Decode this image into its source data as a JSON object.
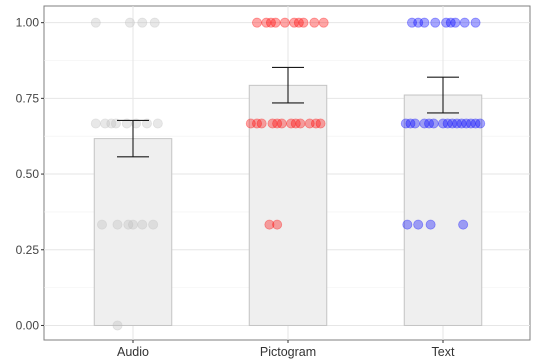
{
  "chart_data": {
    "type": "bar",
    "title": "",
    "xlabel": "",
    "ylabel": "",
    "categories": [
      "Audio",
      "Pictogram",
      "Text"
    ],
    "ylim": [
      0,
      1.05
    ],
    "yticks": [
      "0.00",
      "0.25",
      "0.50",
      "0.75",
      "1.00"
    ],
    "grid": true,
    "legend": "none",
    "bars": [
      {
        "category": "Audio",
        "mean": 0.617,
        "ci_low": 0.557,
        "ci_high": 0.677,
        "color": "#bdbdbd"
      },
      {
        "category": "Pictogram",
        "mean": 0.793,
        "ci_low": 0.735,
        "ci_high": 0.852,
        "color": "#ff0000"
      },
      {
        "category": "Text",
        "mean": 0.761,
        "ci_low": 0.702,
        "ci_high": 0.82,
        "color": "#0000ff"
      }
    ],
    "points": {
      "Audio": [
        {
          "y": 0.0,
          "dx": -0.1
        },
        {
          "y": 0.333,
          "dx": -0.2
        },
        {
          "y": 0.333,
          "dx": -0.1
        },
        {
          "y": 0.333,
          "dx": 0.0
        },
        {
          "y": 0.333,
          "dx": 0.06
        },
        {
          "y": 0.333,
          "dx": 0.13
        },
        {
          "y": 0.333,
          "dx": -0.03
        },
        {
          "y": 0.667,
          "dx": -0.24
        },
        {
          "y": 0.667,
          "dx": -0.18
        },
        {
          "y": 0.667,
          "dx": -0.11
        },
        {
          "y": 0.667,
          "dx": -0.04
        },
        {
          "y": 0.667,
          "dx": 0.02
        },
        {
          "y": 0.667,
          "dx": 0.09
        },
        {
          "y": 0.667,
          "dx": 0.16
        },
        {
          "y": 0.667,
          "dx": -0.14
        },
        {
          "y": 1.0,
          "dx": -0.24
        },
        {
          "y": 1.0,
          "dx": -0.02
        },
        {
          "y": 1.0,
          "dx": 0.06
        },
        {
          "y": 1.0,
          "dx": 0.14
        }
      ],
      "Pictogram": [
        {
          "y": 0.333,
          "dx": -0.12
        },
        {
          "y": 0.333,
          "dx": -0.07
        },
        {
          "y": 0.667,
          "dx": -0.24
        },
        {
          "y": 0.667,
          "dx": -0.17
        },
        {
          "y": 0.667,
          "dx": -0.1
        },
        {
          "y": 0.667,
          "dx": -0.04
        },
        {
          "y": 0.667,
          "dx": 0.02
        },
        {
          "y": 0.667,
          "dx": 0.08
        },
        {
          "y": 0.667,
          "dx": 0.14
        },
        {
          "y": 0.667,
          "dx": 0.21
        },
        {
          "y": 0.667,
          "dx": -0.2
        },
        {
          "y": 0.667,
          "dx": 0.05
        },
        {
          "y": 0.667,
          "dx": 0.18
        },
        {
          "y": 0.667,
          "dx": -0.07
        },
        {
          "y": 1.0,
          "dx": -0.2
        },
        {
          "y": 1.0,
          "dx": -0.14
        },
        {
          "y": 1.0,
          "dx": -0.08
        },
        {
          "y": 1.0,
          "dx": -0.02
        },
        {
          "y": 1.0,
          "dx": 0.04
        },
        {
          "y": 1.0,
          "dx": 0.1
        },
        {
          "y": 1.0,
          "dx": 0.17
        },
        {
          "y": 1.0,
          "dx": 0.23
        },
        {
          "y": 1.0,
          "dx": -0.11
        },
        {
          "y": 1.0,
          "dx": 0.07
        }
      ],
      "Text": [
        {
          "y": 0.333,
          "dx": -0.23
        },
        {
          "y": 0.333,
          "dx": -0.16
        },
        {
          "y": 0.333,
          "dx": -0.08
        },
        {
          "y": 0.333,
          "dx": 0.13
        },
        {
          "y": 0.667,
          "dx": -0.24
        },
        {
          "y": 0.667,
          "dx": -0.18
        },
        {
          "y": 0.667,
          "dx": -0.12
        },
        {
          "y": 0.667,
          "dx": -0.06
        },
        {
          "y": 0.667,
          "dx": 0.0
        },
        {
          "y": 0.667,
          "dx": 0.06
        },
        {
          "y": 0.667,
          "dx": 0.12
        },
        {
          "y": 0.667,
          "dx": 0.18
        },
        {
          "y": 0.667,
          "dx": 0.24
        },
        {
          "y": 0.667,
          "dx": -0.21
        },
        {
          "y": 0.667,
          "dx": -0.09
        },
        {
          "y": 0.667,
          "dx": 0.03
        },
        {
          "y": 0.667,
          "dx": 0.09
        },
        {
          "y": 0.667,
          "dx": 0.15
        },
        {
          "y": 0.667,
          "dx": 0.21
        },
        {
          "y": 1.0,
          "dx": -0.2
        },
        {
          "y": 1.0,
          "dx": -0.12
        },
        {
          "y": 1.0,
          "dx": -0.05
        },
        {
          "y": 1.0,
          "dx": 0.02
        },
        {
          "y": 1.0,
          "dx": 0.08
        },
        {
          "y": 1.0,
          "dx": 0.14
        },
        {
          "y": 1.0,
          "dx": 0.21
        },
        {
          "y": 1.0,
          "dx": -0.16
        },
        {
          "y": 1.0,
          "dx": 0.05
        }
      ]
    }
  }
}
